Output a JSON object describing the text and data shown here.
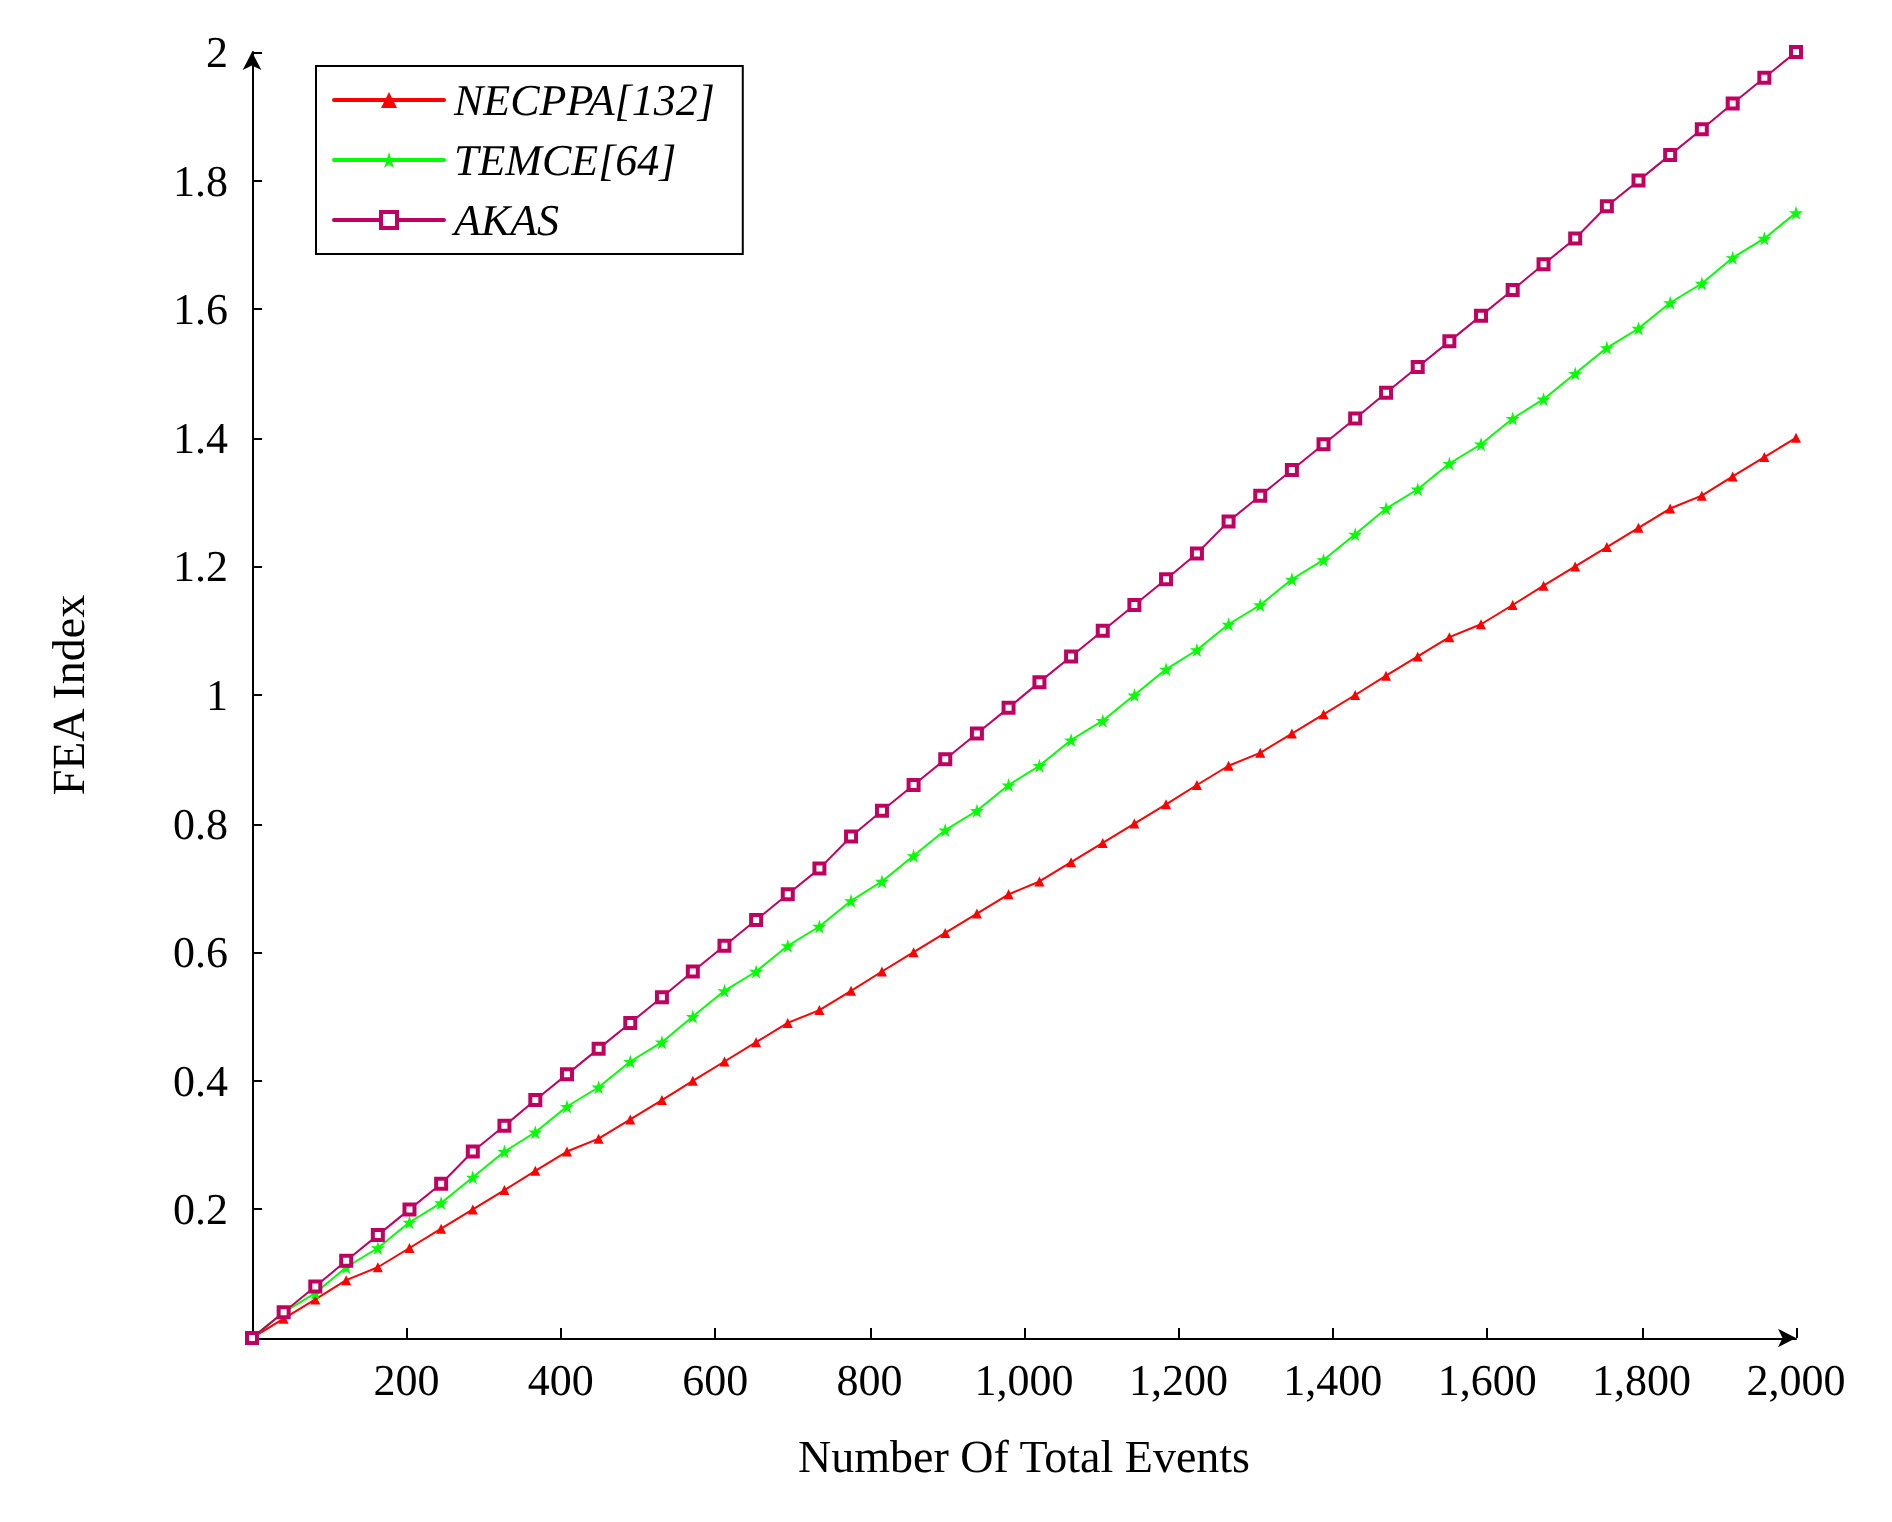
{
  "chart_data": {
    "type": "line",
    "xlabel": "Number Of Total Events",
    "ylabel": "FEA Index",
    "x": [
      0,
      41,
      82,
      122,
      163,
      204,
      245,
      286,
      327,
      367,
      408,
      449,
      490,
      531,
      571,
      612,
      653,
      694,
      735,
      776,
      816,
      857,
      898,
      939,
      980,
      1020,
      1061,
      1102,
      1143,
      1184,
      1224,
      1265,
      1306,
      1347,
      1388,
      1429,
      1469,
      1510,
      1551,
      1592,
      1633,
      1673,
      1714,
      1755,
      1796,
      1837,
      1878,
      1918,
      1959,
      2000
    ],
    "series": [
      {
        "name": "NECPPA[132]",
        "color": "#ff0000",
        "marker": "triangle",
        "values": [
          0,
          0.03,
          0.06,
          0.09,
          0.11,
          0.14,
          0.17,
          0.2,
          0.23,
          0.26,
          0.29,
          0.31,
          0.34,
          0.37,
          0.4,
          0.43,
          0.46,
          0.49,
          0.51,
          0.54,
          0.57,
          0.6,
          0.63,
          0.66,
          0.69,
          0.71,
          0.74,
          0.77,
          0.8,
          0.83,
          0.86,
          0.89,
          0.91,
          0.94,
          0.97,
          1,
          1.03,
          1.06,
          1.09,
          1.11,
          1.14,
          1.17,
          1.2,
          1.23,
          1.26,
          1.29,
          1.31,
          1.34,
          1.37,
          1.4
        ]
      },
      {
        "name": "TEMCE[64]",
        "color": "#00ff00",
        "marker": "star",
        "values": [
          0,
          0.04,
          0.07,
          0.11,
          0.14,
          0.18,
          0.21,
          0.25,
          0.29,
          0.32,
          0.36,
          0.39,
          0.43,
          0.46,
          0.5,
          0.54,
          0.57,
          0.61,
          0.64,
          0.68,
          0.71,
          0.75,
          0.79,
          0.82,
          0.86,
          0.89,
          0.93,
          0.96,
          1,
          1.04,
          1.07,
          1.11,
          1.14,
          1.18,
          1.21,
          1.25,
          1.29,
          1.32,
          1.36,
          1.39,
          1.43,
          1.46,
          1.5,
          1.54,
          1.57,
          1.61,
          1.64,
          1.68,
          1.71,
          1.75
        ]
      },
      {
        "name": "AKAS",
        "color": "#bf0060",
        "marker": "square",
        "values": [
          0,
          0.04,
          0.08,
          0.12,
          0.16,
          0.2,
          0.24,
          0.29,
          0.33,
          0.37,
          0.41,
          0.45,
          0.49,
          0.53,
          0.57,
          0.61,
          0.65,
          0.69,
          0.73,
          0.78,
          0.82,
          0.86,
          0.9,
          0.94,
          0.98,
          1.02,
          1.06,
          1.1,
          1.14,
          1.18,
          1.22,
          1.27,
          1.31,
          1.35,
          1.39,
          1.43,
          1.47,
          1.51,
          1.55,
          1.59,
          1.63,
          1.67,
          1.71,
          1.76,
          1.8,
          1.84,
          1.88,
          1.92,
          1.96,
          2
        ]
      }
    ],
    "xlim": [
      0,
      2000
    ],
    "xticks": [
      200,
      400,
      600,
      800,
      {
        "value": 1000,
        "label": "1,000"
      },
      {
        "value": 1200,
        "label": "1,200"
      },
      {
        "value": 1400,
        "label": "1,400"
      },
      {
        "value": 1600,
        "label": "1,600"
      },
      {
        "value": 1800,
        "label": "1,800"
      },
      {
        "value": 2000,
        "label": "2,000"
      }
    ],
    "ylim": [
      0,
      2
    ],
    "yticks": [
      0.2,
      0.4,
      0.6,
      0.8,
      1,
      1.2,
      1.4,
      1.6,
      1.8,
      2
    ],
    "grid": false,
    "legend": "top left",
    "line_style": "solid"
  }
}
